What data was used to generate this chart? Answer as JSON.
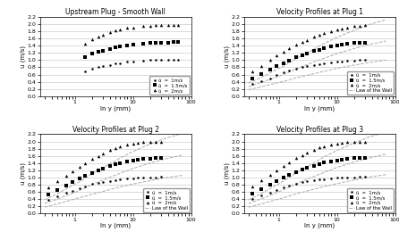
{
  "titles": [
    "Upstream Plug - Smooth Wall",
    "Velocity Profiles at Plug 1",
    "Velocity Profiles at Plug 2",
    "Velocity Profiles at Plug 3"
  ],
  "xlabel": "ln y (mm)",
  "ylabel": "u (m/s)",
  "ylim": [
    0.0,
    2.2
  ],
  "yticks": [
    0.0,
    0.2,
    0.4,
    0.6,
    0.8,
    1.0,
    1.2,
    1.4,
    1.6,
    1.8,
    2.0,
    2.2
  ],
  "xlim_log": [
    0.25,
    100
  ],
  "legend_labels": [
    "ū  =  1m/s",
    "ū  =  1.5m/s",
    "ū  =  2m/s",
    "Law of the Wall"
  ],
  "law_color": "#aaaaaa",
  "grid_color": "#cccccc",
  "smooth_data": {
    "y1": [
      1.5,
      2.0,
      2.5,
      3.0,
      4.0,
      5.0,
      6.0,
      8.0,
      10.0,
      15.0,
      20.0,
      25.0,
      30.0,
      40.0,
      50.0,
      60.0
    ],
    "u1": [
      0.68,
      0.76,
      0.8,
      0.83,
      0.87,
      0.9,
      0.92,
      0.95,
      0.97,
      0.99,
      1.0,
      1.01,
      1.01,
      1.02,
      1.02,
      1.02
    ],
    "y2": [
      1.5,
      2.0,
      2.5,
      3.0,
      4.0,
      5.0,
      6.0,
      8.0,
      10.0,
      15.0,
      20.0,
      25.0,
      30.0,
      40.0,
      50.0,
      60.0
    ],
    "u2": [
      1.08,
      1.17,
      1.22,
      1.25,
      1.31,
      1.35,
      1.38,
      1.41,
      1.43,
      1.46,
      1.47,
      1.48,
      1.49,
      1.49,
      1.5,
      1.5
    ],
    "y3": [
      1.5,
      2.0,
      2.5,
      3.0,
      4.0,
      5.0,
      6.0,
      8.0,
      10.0,
      15.0,
      20.0,
      25.0,
      30.0,
      40.0,
      50.0,
      60.0
    ],
    "u3": [
      1.45,
      1.58,
      1.65,
      1.7,
      1.78,
      1.82,
      1.85,
      1.89,
      1.91,
      1.95,
      1.96,
      1.97,
      1.98,
      1.98,
      1.98,
      1.98
    ]
  },
  "plug1_data": {
    "y1": [
      0.35,
      0.5,
      0.7,
      0.9,
      1.2,
      1.5,
      2.0,
      2.5,
      3.0,
      4.0,
      5.0,
      6.0,
      8.0,
      10.0,
      12.0,
      15.0,
      20.0,
      25.0,
      30.0
    ],
    "u1": [
      0.35,
      0.42,
      0.5,
      0.58,
      0.65,
      0.7,
      0.76,
      0.8,
      0.83,
      0.87,
      0.89,
      0.91,
      0.94,
      0.96,
      0.97,
      0.98,
      0.99,
      1.0,
      1.01
    ],
    "y2": [
      0.35,
      0.5,
      0.7,
      0.9,
      1.2,
      1.5,
      2.0,
      2.5,
      3.0,
      4.0,
      5.0,
      6.0,
      8.0,
      10.0,
      12.0,
      15.0,
      20.0,
      25.0,
      30.0
    ],
    "u2": [
      0.5,
      0.62,
      0.74,
      0.84,
      0.92,
      0.99,
      1.08,
      1.13,
      1.18,
      1.25,
      1.29,
      1.32,
      1.37,
      1.41,
      1.43,
      1.45,
      1.47,
      1.48,
      1.49
    ],
    "y3": [
      0.35,
      0.5,
      0.7,
      0.9,
      1.2,
      1.5,
      2.0,
      2.5,
      3.0,
      4.0,
      5.0,
      6.0,
      8.0,
      10.0,
      12.0,
      15.0,
      20.0,
      25.0,
      30.0
    ],
    "u3": [
      0.68,
      0.84,
      1.0,
      1.12,
      1.22,
      1.32,
      1.42,
      1.5,
      1.56,
      1.64,
      1.7,
      1.74,
      1.8,
      1.85,
      1.88,
      1.91,
      1.94,
      1.96,
      1.97
    ],
    "law_y": [
      0.3,
      0.5,
      0.8,
      1.2,
      2.0,
      3.5,
      6.0,
      10.0,
      18.0,
      35.0,
      70.0
    ],
    "law_u1": [
      0.18,
      0.26,
      0.34,
      0.41,
      0.51,
      0.6,
      0.69,
      0.77,
      0.85,
      0.93,
      1.0
    ],
    "law_u2": [
      0.26,
      0.38,
      0.5,
      0.6,
      0.76,
      0.91,
      1.05,
      1.18,
      1.3,
      1.43,
      1.53
    ],
    "law_u3": [
      0.36,
      0.52,
      0.69,
      0.83,
      1.05,
      1.25,
      1.46,
      1.63,
      1.8,
      1.98,
      2.12
    ]
  },
  "plug2_data": {
    "y1": [
      0.35,
      0.5,
      0.7,
      0.9,
      1.2,
      1.5,
      2.0,
      2.5,
      3.0,
      4.0,
      5.0,
      6.0,
      8.0,
      10.0,
      12.0,
      15.0,
      20.0,
      25.0,
      30.0
    ],
    "u1": [
      0.38,
      0.48,
      0.57,
      0.64,
      0.71,
      0.76,
      0.82,
      0.86,
      0.88,
      0.91,
      0.93,
      0.95,
      0.97,
      0.98,
      0.99,
      1.0,
      1.01,
      1.01,
      1.02
    ],
    "y2": [
      0.35,
      0.5,
      0.7,
      0.9,
      1.2,
      1.5,
      2.0,
      2.5,
      3.0,
      4.0,
      5.0,
      6.0,
      8.0,
      10.0,
      12.0,
      15.0,
      20.0,
      25.0,
      30.0
    ],
    "u2": [
      0.53,
      0.66,
      0.78,
      0.88,
      0.97,
      1.04,
      1.13,
      1.19,
      1.24,
      1.31,
      1.36,
      1.39,
      1.44,
      1.47,
      1.49,
      1.51,
      1.53,
      1.54,
      1.55
    ],
    "y3": [
      0.35,
      0.5,
      0.7,
      0.9,
      1.2,
      1.5,
      2.0,
      2.5,
      3.0,
      4.0,
      5.0,
      6.0,
      8.0,
      10.0,
      12.0,
      15.0,
      20.0,
      25.0,
      30.0
    ],
    "u3": [
      0.72,
      0.9,
      1.06,
      1.18,
      1.3,
      1.4,
      1.52,
      1.6,
      1.66,
      1.76,
      1.82,
      1.86,
      1.91,
      1.95,
      1.97,
      1.98,
      1.99,
      2.0,
      2.0
    ],
    "law_y": [
      0.3,
      0.5,
      0.8,
      1.2,
      2.0,
      3.5,
      6.0,
      10.0,
      18.0,
      35.0,
      70.0
    ],
    "law_u1": [
      0.18,
      0.27,
      0.36,
      0.44,
      0.54,
      0.64,
      0.74,
      0.82,
      0.9,
      0.99,
      1.06
    ],
    "law_u2": [
      0.28,
      0.4,
      0.53,
      0.64,
      0.81,
      0.97,
      1.12,
      1.25,
      1.38,
      1.51,
      1.62
    ],
    "law_u3": [
      0.38,
      0.55,
      0.73,
      0.88,
      1.11,
      1.33,
      1.54,
      1.72,
      1.9,
      2.08,
      2.22
    ]
  },
  "plug3_data": {
    "y1": [
      0.35,
      0.5,
      0.7,
      0.9,
      1.2,
      1.5,
      2.0,
      2.5,
      3.0,
      4.0,
      5.0,
      6.0,
      8.0,
      10.0,
      12.0,
      15.0,
      20.0,
      25.0,
      30.0
    ],
    "u1": [
      0.4,
      0.5,
      0.59,
      0.66,
      0.73,
      0.78,
      0.83,
      0.87,
      0.89,
      0.92,
      0.94,
      0.96,
      0.98,
      0.99,
      1.0,
      1.01,
      1.01,
      1.02,
      1.02
    ],
    "y2": [
      0.35,
      0.5,
      0.7,
      0.9,
      1.2,
      1.5,
      2.0,
      2.5,
      3.0,
      4.0,
      5.0,
      6.0,
      8.0,
      10.0,
      12.0,
      15.0,
      20.0,
      25.0,
      30.0
    ],
    "u2": [
      0.55,
      0.68,
      0.8,
      0.9,
      0.99,
      1.07,
      1.15,
      1.21,
      1.26,
      1.33,
      1.37,
      1.41,
      1.45,
      1.48,
      1.5,
      1.52,
      1.54,
      1.55,
      1.55
    ],
    "y3": [
      0.35,
      0.5,
      0.7,
      0.9,
      1.2,
      1.5,
      2.0,
      2.5,
      3.0,
      4.0,
      5.0,
      6.0,
      8.0,
      10.0,
      12.0,
      15.0,
      20.0,
      25.0,
      30.0
    ],
    "u3": [
      0.74,
      0.92,
      1.08,
      1.2,
      1.33,
      1.43,
      1.54,
      1.62,
      1.68,
      1.77,
      1.83,
      1.87,
      1.92,
      1.95,
      1.97,
      1.99,
      2.0,
      2.0,
      2.0
    ],
    "law_y": [
      0.3,
      0.5,
      0.8,
      1.2,
      2.0,
      3.5,
      6.0,
      10.0,
      18.0,
      35.0,
      70.0
    ],
    "law_u1": [
      0.18,
      0.27,
      0.36,
      0.44,
      0.55,
      0.65,
      0.75,
      0.83,
      0.92,
      1.01,
      1.08
    ],
    "law_u2": [
      0.28,
      0.41,
      0.54,
      0.66,
      0.83,
      0.99,
      1.14,
      1.28,
      1.41,
      1.54,
      1.65
    ],
    "law_u3": [
      0.38,
      0.56,
      0.74,
      0.9,
      1.13,
      1.35,
      1.57,
      1.75,
      1.93,
      2.12,
      2.26
    ]
  }
}
